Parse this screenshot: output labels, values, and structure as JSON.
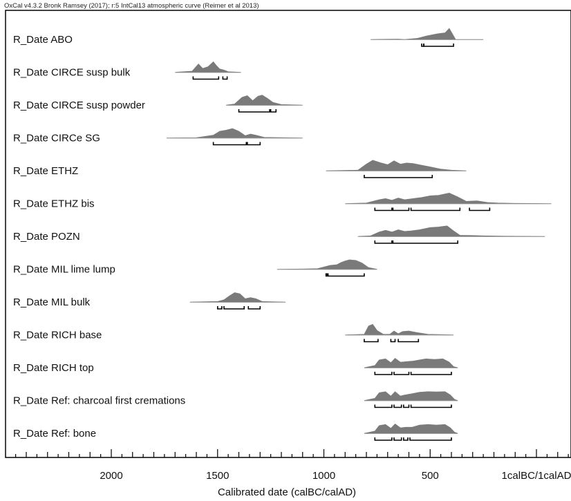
{
  "header": "OxCal v4.3.2 Bronk Ramsey (2017); r:5 IntCal13 atmospheric curve (Reimer et al 2013)",
  "colors": {
    "distribution": "#7a7a7a",
    "range": "#000000",
    "frame": "#000000",
    "line": "#9a9a9a"
  },
  "chart_data": {
    "type": "area",
    "title": "",
    "xlabel": "Calibrated date (calBC/calAD)",
    "xlim": [
      2500,
      -20
    ],
    "x_ticks": [
      2000,
      1500,
      1000,
      500,
      0
    ],
    "x_tick_labels": [
      "2000",
      "1500",
      "1000",
      "500",
      "1calBC/1calAD"
    ],
    "series": [
      {
        "name": "R_Date ABO",
        "extent": [
          780,
          250
        ],
        "curve": [
          [
            780,
            0
          ],
          [
            700,
            0.02
          ],
          [
            650,
            0.03
          ],
          [
            620,
            0
          ],
          [
            560,
            0.1
          ],
          [
            520,
            0.3
          ],
          [
            470,
            0.5
          ],
          [
            430,
            0.6
          ],
          [
            410,
            1
          ],
          [
            395,
            0.5
          ],
          [
            380,
            0
          ],
          [
            250,
            0
          ]
        ],
        "ranges": [
          [
            540,
            530
          ],
          [
            530,
            390
          ]
        ]
      },
      {
        "name": "R_Date CIRCE susp bulk",
        "extent": [
          1700,
          1390
        ],
        "curve": [
          [
            1700,
            0
          ],
          [
            1620,
            0.1
          ],
          [
            1590,
            0.75
          ],
          [
            1570,
            0.35
          ],
          [
            1545,
            0.5
          ],
          [
            1520,
            0.95
          ],
          [
            1505,
            0.6
          ],
          [
            1490,
            0.3
          ],
          [
            1470,
            0.2
          ],
          [
            1450,
            0.05
          ],
          [
            1390,
            0
          ]
        ],
        "ranges": [
          [
            1615,
            1495
          ],
          [
            1475,
            1455
          ]
        ]
      },
      {
        "name": "R_Date CIRCE susp powder",
        "extent": [
          1460,
          1100
        ],
        "curve": [
          [
            1460,
            0
          ],
          [
            1420,
            0.1
          ],
          [
            1385,
            0.7
          ],
          [
            1360,
            0.85
          ],
          [
            1335,
            0.4
          ],
          [
            1310,
            0.8
          ],
          [
            1290,
            0.9
          ],
          [
            1265,
            0.6
          ],
          [
            1240,
            0.25
          ],
          [
            1200,
            0.05
          ],
          [
            1100,
            0
          ]
        ],
        "ranges": [
          [
            1400,
            1255
          ],
          [
            1250,
            1225
          ]
        ]
      },
      {
        "name": "R_Date CIRCe SG",
        "extent": [
          1740,
          1100
        ],
        "curve": [
          [
            1740,
            0
          ],
          [
            1600,
            0.02
          ],
          [
            1520,
            0.25
          ],
          [
            1490,
            0.6
          ],
          [
            1460,
            0.7
          ],
          [
            1430,
            0.85
          ],
          [
            1400,
            0.6
          ],
          [
            1370,
            0.2
          ],
          [
            1345,
            0.35
          ],
          [
            1320,
            0.25
          ],
          [
            1280,
            0.05
          ],
          [
            1100,
            0
          ]
        ],
        "ranges": [
          [
            1520,
            1365
          ],
          [
            1360,
            1300
          ]
        ]
      },
      {
        "name": "R_Date ETHZ",
        "extent": [
          990,
          330
        ],
        "curve": [
          [
            990,
            0
          ],
          [
            840,
            0.05
          ],
          [
            800,
            0.6
          ],
          [
            770,
            0.95
          ],
          [
            730,
            0.7
          ],
          [
            700,
            0.55
          ],
          [
            670,
            0.9
          ],
          [
            640,
            0.6
          ],
          [
            610,
            0.7
          ],
          [
            580,
            0.65
          ],
          [
            540,
            0.5
          ],
          [
            500,
            0.35
          ],
          [
            450,
            0.15
          ],
          [
            400,
            0.05
          ],
          [
            330,
            0
          ]
        ],
        "ranges": [
          [
            810,
            490
          ]
        ]
      },
      {
        "name": "R_Date ETHZ bis",
        "extent": [
          900,
          -70
        ],
        "curve": [
          [
            900,
            0
          ],
          [
            800,
            0.05
          ],
          [
            740,
            0.35
          ],
          [
            710,
            0.45
          ],
          [
            680,
            0.3
          ],
          [
            650,
            0.5
          ],
          [
            620,
            0.35
          ],
          [
            580,
            0.45
          ],
          [
            540,
            0.55
          ],
          [
            500,
            0.7
          ],
          [
            460,
            0.75
          ],
          [
            410,
            0.95
          ],
          [
            370,
            0.6
          ],
          [
            330,
            0.2
          ],
          [
            280,
            0.25
          ],
          [
            230,
            0.1
          ],
          [
            180,
            0.05
          ],
          [
            100,
            0.02
          ],
          [
            -70,
            0
          ]
        ],
        "ranges": [
          [
            760,
            680
          ],
          [
            675,
            600
          ],
          [
            590,
            360
          ],
          [
            315,
            220
          ]
        ]
      },
      {
        "name": "R_Date POZN",
        "extent": [
          840,
          -40
        ],
        "curve": [
          [
            840,
            0
          ],
          [
            780,
            0.05
          ],
          [
            740,
            0.4
          ],
          [
            710,
            0.55
          ],
          [
            680,
            0.4
          ],
          [
            650,
            0.6
          ],
          [
            620,
            0.45
          ],
          [
            590,
            0.5
          ],
          [
            550,
            0.6
          ],
          [
            500,
            0.8
          ],
          [
            460,
            0.85
          ],
          [
            420,
            0.95
          ],
          [
            390,
            0.5
          ],
          [
            360,
            0.1
          ],
          [
            300,
            0.08
          ],
          [
            250,
            0.05
          ],
          [
            150,
            0.02
          ],
          [
            -40,
            0
          ]
        ],
        "ranges": [
          [
            760,
            680
          ],
          [
            675,
            370
          ]
        ]
      },
      {
        "name": "R_Date MIL lime lump",
        "extent": [
          1220,
          750
        ],
        "curve": [
          [
            1220,
            0
          ],
          [
            1100,
            0.02
          ],
          [
            1030,
            0.05
          ],
          [
            1000,
            0.2
          ],
          [
            970,
            0.35
          ],
          [
            940,
            0.4
          ],
          [
            920,
            0.6
          ],
          [
            900,
            0.75
          ],
          [
            880,
            0.85
          ],
          [
            850,
            0.8
          ],
          [
            820,
            0.55
          ],
          [
            790,
            0.15
          ],
          [
            750,
            0
          ]
        ],
        "ranges": [
          [
            990,
            985
          ],
          [
            980,
            810
          ]
        ]
      },
      {
        "name": "R_Date MIL bulk",
        "extent": [
          1630,
          1180
        ],
        "curve": [
          [
            1630,
            0
          ],
          [
            1500,
            0.05
          ],
          [
            1470,
            0.2
          ],
          [
            1445,
            0.55
          ],
          [
            1420,
            0.85
          ],
          [
            1395,
            0.75
          ],
          [
            1370,
            0.3
          ],
          [
            1345,
            0.4
          ],
          [
            1320,
            0.3
          ],
          [
            1290,
            0.05
          ],
          [
            1180,
            0
          ]
        ],
        "ranges": [
          [
            1500,
            1480
          ],
          [
            1470,
            1375
          ],
          [
            1355,
            1300
          ]
        ]
      },
      {
        "name": "R_Date RICH base",
        "extent": [
          900,
          390
        ],
        "curve": [
          [
            900,
            0
          ],
          [
            810,
            0.05
          ],
          [
            790,
            0.8
          ],
          [
            770,
            0.95
          ],
          [
            750,
            0.4
          ],
          [
            720,
            0.05
          ],
          [
            690,
            0.05
          ],
          [
            670,
            0.35
          ],
          [
            650,
            0.1
          ],
          [
            630,
            0.3
          ],
          [
            600,
            0.35
          ],
          [
            560,
            0.2
          ],
          [
            510,
            0.05
          ],
          [
            390,
            0
          ]
        ],
        "ranges": [
          [
            810,
            745
          ],
          [
            685,
            665
          ],
          [
            650,
            555
          ]
        ]
      },
      {
        "name": "R_Date RICH top",
        "extent": [
          810,
          370
        ],
        "curve": [
          [
            810,
            0
          ],
          [
            760,
            0.2
          ],
          [
            740,
            0.7
          ],
          [
            710,
            0.8
          ],
          [
            685,
            0.45
          ],
          [
            665,
            0.85
          ],
          [
            640,
            0.5
          ],
          [
            610,
            0.55
          ],
          [
            580,
            0.6
          ],
          [
            550,
            0.7
          ],
          [
            520,
            0.8
          ],
          [
            480,
            0.75
          ],
          [
            440,
            0.8
          ],
          [
            410,
            0.5
          ],
          [
            390,
            0.1
          ],
          [
            370,
            0
          ]
        ],
        "ranges": [
          [
            760,
            680
          ],
          [
            670,
            600
          ],
          [
            590,
            400
          ]
        ]
      },
      {
        "name": "R_Date Ref: charcoal first cremations",
        "extent": [
          810,
          370
        ],
        "curve": [
          [
            810,
            0
          ],
          [
            760,
            0.2
          ],
          [
            740,
            0.7
          ],
          [
            710,
            0.8
          ],
          [
            685,
            0.4
          ],
          [
            665,
            0.8
          ],
          [
            640,
            0.4
          ],
          [
            620,
            0.5
          ],
          [
            590,
            0.6
          ],
          [
            550,
            0.75
          ],
          [
            510,
            0.8
          ],
          [
            470,
            0.78
          ],
          [
            430,
            0.8
          ],
          [
            405,
            0.5
          ],
          [
            385,
            0.1
          ],
          [
            370,
            0
          ]
        ],
        "ranges": [
          [
            760,
            680
          ],
          [
            670,
            635
          ],
          [
            625,
            600
          ],
          [
            590,
            400
          ]
        ]
      },
      {
        "name": "R_Date Ref: bone",
        "extent": [
          810,
          370
        ],
        "curve": [
          [
            810,
            0
          ],
          [
            760,
            0.2
          ],
          [
            740,
            0.7
          ],
          [
            710,
            0.8
          ],
          [
            685,
            0.45
          ],
          [
            665,
            0.85
          ],
          [
            640,
            0.5
          ],
          [
            615,
            0.55
          ],
          [
            585,
            0.55
          ],
          [
            550,
            0.75
          ],
          [
            510,
            0.8
          ],
          [
            470,
            0.75
          ],
          [
            430,
            0.8
          ],
          [
            405,
            0.5
          ],
          [
            385,
            0.1
          ],
          [
            370,
            0
          ]
        ],
        "ranges": [
          [
            760,
            680
          ],
          [
            670,
            635
          ],
          [
            625,
            605
          ],
          [
            595,
            400
          ]
        ]
      }
    ]
  }
}
